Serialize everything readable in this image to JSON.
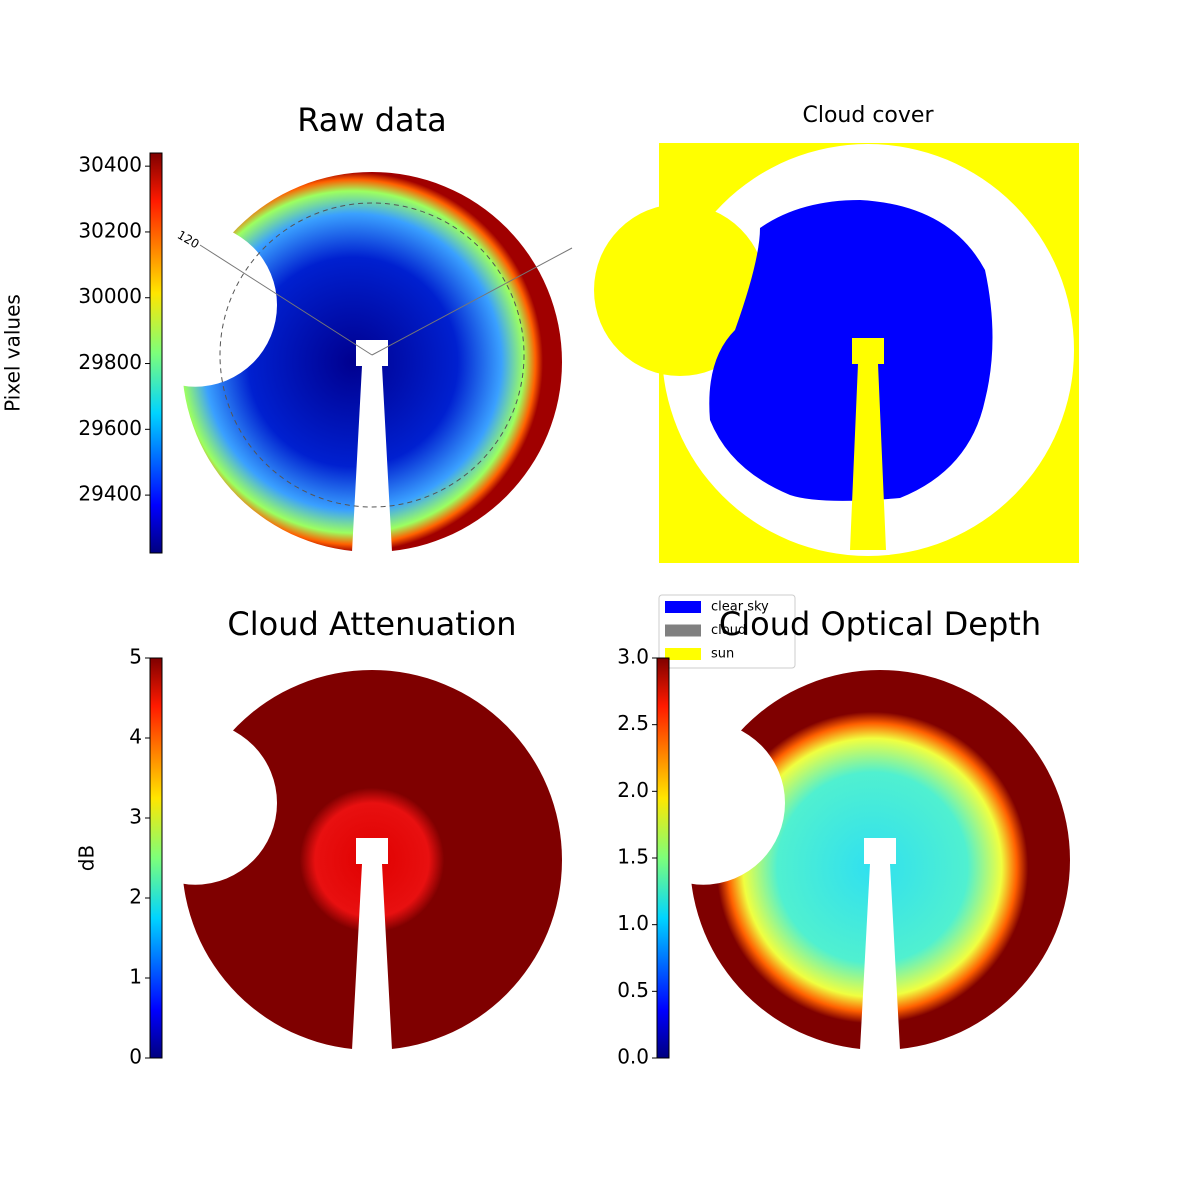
{
  "panels": [
    {
      "title": "Raw data",
      "colorbar": {
        "label": "Pixel values",
        "lim": [
          29224,
          30440
        ],
        "ticks": [
          29400,
          29600,
          29800,
          30000,
          30200,
          30400
        ]
      }
    },
    {
      "title": "Cloud cover"
    },
    {
      "title": "Cloud Attenuation",
      "colorbar": {
        "label": "dB",
        "lim": [
          0,
          5
        ],
        "ticks": [
          0,
          1,
          2,
          3,
          4,
          5
        ]
      }
    },
    {
      "title": "Cloud Optical Depth",
      "colorbar": {
        "lim": [
          0,
          3
        ],
        "ticks": [
          {
            "value": 0,
            "label": "0.0"
          },
          0.5,
          {
            "value": 1,
            "label": "1.0"
          },
          1.5,
          {
            "value": 2,
            "label": "2.0"
          },
          2.5,
          {
            "value": 3,
            "label": "3.0"
          }
        ]
      }
    }
  ],
  "polar_labels": [
    "120"
  ],
  "legend": [
    {
      "label": "clear sky",
      "color": "#0000ff"
    },
    {
      "label": "cloud",
      "color": "#808080"
    },
    {
      "label": "sun",
      "color": "#ffff00"
    }
  ]
}
